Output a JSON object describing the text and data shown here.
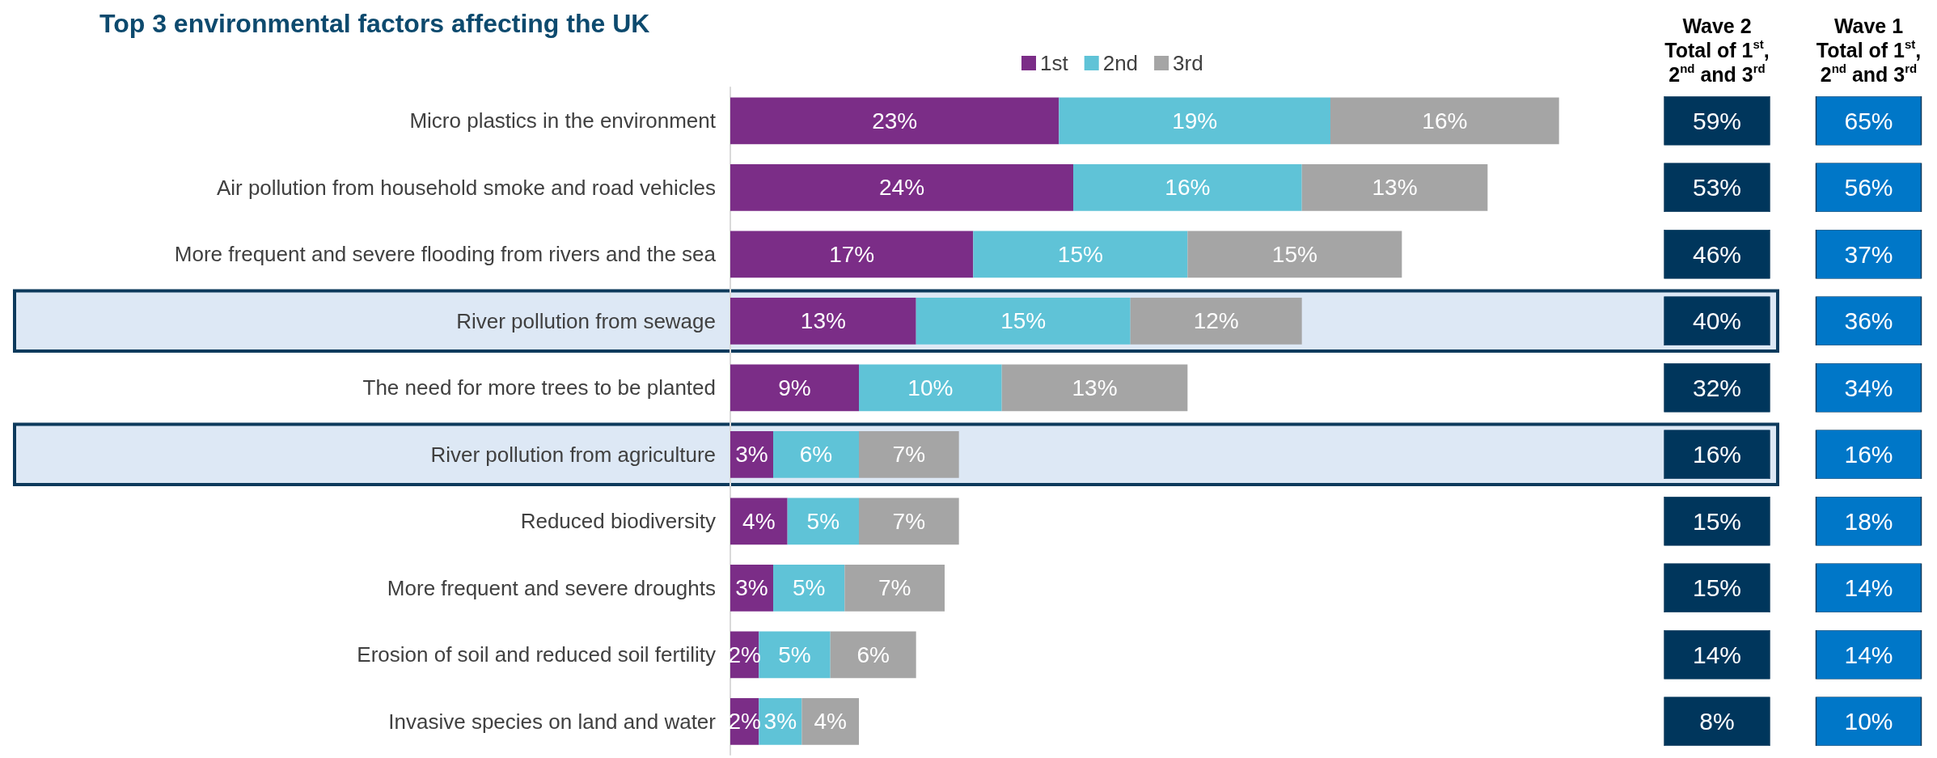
{
  "chart_data": [
    {
      "type": "bar",
      "title": "Top 3 environmental factors affecting the UK",
      "orientation": "horizontal",
      "stacked": true,
      "legend": "top",
      "categories": [
        "Micro plastics in the environment",
        "Air pollution from household smoke and road vehicles",
        "More frequent and severe flooding from rivers and the sea",
        "River pollution from sewage",
        "The need for more trees to be planted",
        "River pollution from agriculture",
        "Reduced biodiversity",
        "More frequent and severe droughts",
        "Erosion of soil and reduced soil fertility",
        "Invasive species on land and water"
      ],
      "series": [
        {
          "name": "1st",
          "color": "#7b2d87",
          "values": [
            23,
            24,
            17,
            13,
            9,
            3,
            4,
            3,
            2,
            2
          ],
          "value_labels": [
            "23%",
            "24%",
            "17%",
            "13%",
            "9%",
            "3%",
            "4%",
            "3%",
            "2%",
            "2%"
          ]
        },
        {
          "name": "2nd",
          "color": "#5fc3d7",
          "values": [
            19,
            16,
            15,
            15,
            10,
            6,
            5,
            5,
            5,
            3
          ],
          "value_labels": [
            "19%",
            "16%",
            "15%",
            "15%",
            "10%",
            "6%",
            "5%",
            "5%",
            "5%",
            "3%"
          ]
        },
        {
          "name": "3rd",
          "color": "#a5a5a5",
          "values": [
            16,
            13,
            15,
            12,
            13,
            7,
            7,
            7,
            6,
            4
          ],
          "value_labels": [
            "16%",
            "13%",
            "15%",
            "12%",
            "13%",
            "7%",
            "7%",
            "7%",
            "6%",
            "4%"
          ]
        }
      ],
      "bands": [
        {
          "axis": "y",
          "from": "River pollution from sewage",
          "to": "River pollution from sewage",
          "color": "#dde8f5"
        },
        {
          "axis": "y",
          "from": "River pollution from agriculture",
          "to": "River pollution from agriculture",
          "color": "#dde8f5"
        }
      ]
    },
    {
      "type": "other",
      "title": "Wave 2\nTotal of 1$^{st}$,\n2$^{nd}$ and 3$^{rd}$",
      "categories": [
        null,
        null,
        null,
        null,
        null,
        null,
        null,
        null,
        null,
        null
      ],
      "color": "#00365c",
      "value_labels": [
        "59%",
        "53%",
        "46%",
        "40%",
        "32%",
        "16%",
        "15%",
        "15%",
        "14%",
        "8%"
      ]
    },
    {
      "type": "other",
      "title": "Wave 1\nTotal of 1$^{st}$,\n2$^{nd}$ and 3$^{rd}$",
      "categories": [
        null,
        null,
        null,
        null,
        null,
        null,
        null,
        null,
        null,
        null
      ],
      "color": "#0077c8",
      "value_labels": [
        "65%",
        "56%",
        "37%",
        "36%",
        "34%",
        "16%",
        "18%",
        "14%",
        "14%",
        "10%"
      ]
    }
  ]
}
